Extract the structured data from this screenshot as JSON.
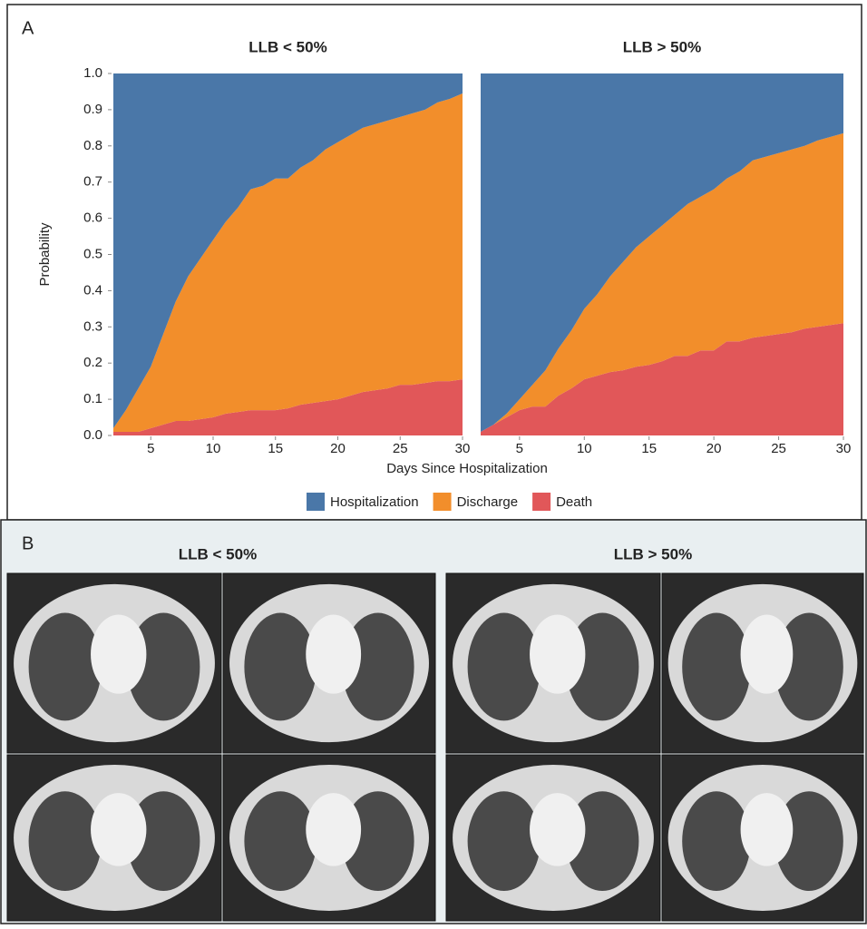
{
  "panel_labels": [
    "A",
    "B"
  ],
  "ct_titles": [
    "LLB < 50%",
    "LLB > 50%"
  ],
  "legend_position": "bottom",
  "chart_data": [
    {
      "type": "stacked_area",
      "title": "LLB < 50%",
      "xlabel": "Days Since Hospitalization",
      "ylabel": "Probability",
      "x": [
        2,
        3,
        4,
        5,
        6,
        7,
        8,
        9,
        10,
        11,
        12,
        13,
        14,
        15,
        16,
        17,
        18,
        19,
        20,
        21,
        22,
        23,
        24,
        25,
        26,
        27,
        28,
        29,
        30
      ],
      "series": [
        {
          "name": "Hospitalization",
          "color": "#4a77a8",
          "values": [
            0.98,
            0.93,
            0.87,
            0.81,
            0.72,
            0.63,
            0.56,
            0.51,
            0.46,
            0.41,
            0.37,
            0.32,
            0.31,
            0.29,
            0.29,
            0.26,
            0.24,
            0.21,
            0.19,
            0.17,
            0.15,
            0.14,
            0.13,
            0.12,
            0.11,
            0.1,
            0.08,
            0.07,
            0.055
          ]
        },
        {
          "name": "Discharge",
          "color": "#f28e2b",
          "values": [
            0.01,
            0.06,
            0.12,
            0.17,
            0.25,
            0.33,
            0.4,
            0.445,
            0.49,
            0.53,
            0.565,
            0.61,
            0.62,
            0.64,
            0.635,
            0.655,
            0.67,
            0.695,
            0.71,
            0.72,
            0.73,
            0.735,
            0.74,
            0.74,
            0.75,
            0.755,
            0.77,
            0.78,
            0.79
          ]
        },
        {
          "name": "Death",
          "color": "#e15759",
          "values": [
            0.01,
            0.01,
            0.01,
            0.02,
            0.03,
            0.04,
            0.04,
            0.045,
            0.05,
            0.06,
            0.065,
            0.07,
            0.07,
            0.07,
            0.075,
            0.085,
            0.09,
            0.095,
            0.1,
            0.11,
            0.12,
            0.125,
            0.13,
            0.14,
            0.14,
            0.145,
            0.15,
            0.15,
            0.155
          ]
        }
      ],
      "xlim": [
        2,
        30
      ],
      "xticks": [
        5,
        10,
        15,
        20,
        25,
        30
      ],
      "ylim": [
        0,
        1
      ],
      "yticks": [
        {
          "value": 0,
          "label": "0.0"
        },
        0.1,
        0.2,
        0.3,
        0.4,
        0.5,
        0.6,
        0.7,
        0.8,
        0.9,
        {
          "value": 1,
          "label": "1.0"
        }
      ]
    },
    {
      "type": "stacked_area",
      "title": "LLB > 50%",
      "x": [
        2,
        3,
        4,
        5,
        6,
        7,
        8,
        9,
        10,
        11,
        12,
        13,
        14,
        15,
        16,
        17,
        18,
        19,
        20,
        21,
        22,
        23,
        24,
        25,
        26,
        27,
        28,
        29,
        30
      ],
      "series": [
        {
          "color": "#4a77a8",
          "values": [
            0.99,
            0.97,
            0.94,
            0.9,
            0.86,
            0.82,
            0.76,
            0.71,
            0.65,
            0.61,
            0.56,
            0.52,
            0.48,
            0.45,
            0.42,
            0.39,
            0.36,
            0.34,
            0.32,
            0.29,
            0.27,
            0.24,
            0.23,
            0.22,
            0.21,
            0.2,
            0.185,
            0.175,
            0.165
          ]
        },
        {
          "color": "#f28e2b",
          "values": [
            0,
            0,
            0.01,
            0.03,
            0.06,
            0.1,
            0.13,
            0.16,
            0.195,
            0.225,
            0.265,
            0.3,
            0.33,
            0.355,
            0.375,
            0.39,
            0.42,
            0.425,
            0.445,
            0.45,
            0.47,
            0.49,
            0.495,
            0.5,
            0.505,
            0.505,
            0.515,
            0.52,
            0.525
          ]
        },
        {
          "color": "#e15759",
          "values": [
            0.01,
            0.03,
            0.05,
            0.07,
            0.08,
            0.08,
            0.11,
            0.13,
            0.155,
            0.165,
            0.175,
            0.18,
            0.19,
            0.195,
            0.205,
            0.22,
            0.22,
            0.235,
            0.235,
            0.26,
            0.26,
            0.27,
            0.275,
            0.28,
            0.285,
            0.295,
            0.3,
            0.305,
            0.31
          ]
        }
      ],
      "xlim": [
        2,
        30
      ],
      "xticks": [
        5,
        10,
        15,
        20,
        25,
        30
      ],
      "ylim": [
        0,
        1
      ]
    }
  ]
}
